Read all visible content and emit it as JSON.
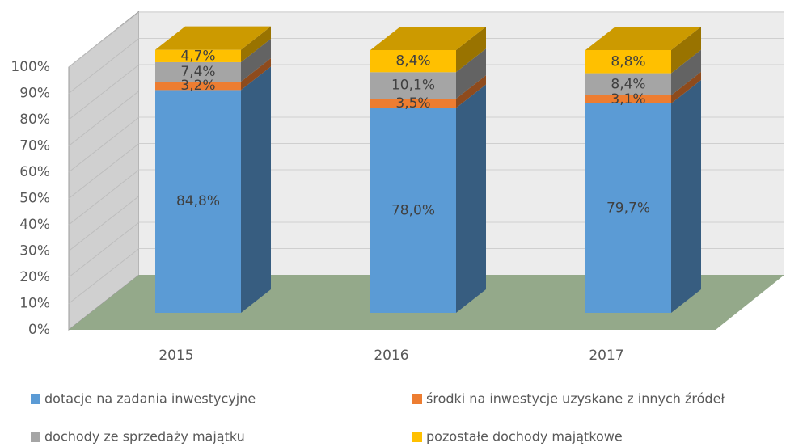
{
  "chart_data": {
    "type": "bar3d_stacked",
    "categories": [
      "2015",
      "2016",
      "2017"
    ],
    "series": [
      {
        "name": "dotacje na zadania inwestycyjne",
        "color": "#5b9bd5",
        "values": [
          84.8,
          78.0,
          79.7
        ],
        "value_labels": [
          "84,8%",
          "78,0%",
          "79,7%"
        ]
      },
      {
        "name": "środki na inwestycje uzyskane z innych źródeł",
        "color": "#ed7d31",
        "values": [
          3.2,
          3.5,
          3.1
        ],
        "value_labels": [
          "3,2%",
          "3,5%",
          "3,1%"
        ]
      },
      {
        "name": "dochody ze sprzedaży majątku",
        "color": "#a5a5a5",
        "values": [
          7.4,
          10.1,
          8.4
        ],
        "value_labels": [
          "7,4%",
          "10,1%",
          "8,4%"
        ]
      },
      {
        "name": "pozostałe dochody majątkowe",
        "color": "#ffc000",
        "values": [
          4.7,
          8.4,
          8.8
        ],
        "value_labels": [
          "4,7%",
          "8,4%",
          "8,8%"
        ]
      }
    ],
    "ylim": [
      0,
      100
    ],
    "yticks": [
      {
        "value": 0,
        "label": "0%"
      },
      {
        "value": 10,
        "label": "10%"
      },
      {
        "value": 20,
        "label": "20%"
      },
      {
        "value": 30,
        "label": "30%"
      },
      {
        "value": 40,
        "label": "40%"
      },
      {
        "value": 50,
        "label": "50%"
      },
      {
        "value": 60,
        "label": "60%"
      },
      {
        "value": 70,
        "label": "70%"
      },
      {
        "value": 80,
        "label": "80%"
      },
      {
        "value": 90,
        "label": "90%"
      },
      {
        "value": 100,
        "label": "100%"
      }
    ],
    "grid": true,
    "legend": "bottom"
  }
}
